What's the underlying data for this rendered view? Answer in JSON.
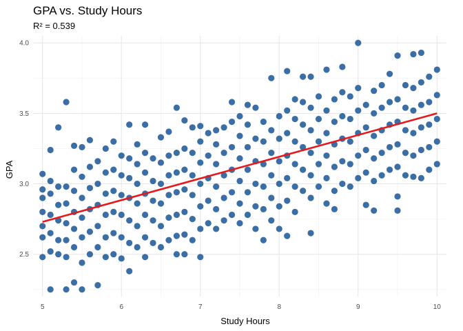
{
  "chart_data": {
    "type": "scatter",
    "title": "GPA vs. Study Hours",
    "subtitle": "R² = 0.539",
    "xlabel": "Study Hours",
    "ylabel": "GPA",
    "xlim": [
      4.88,
      10.12
    ],
    "ylim": [
      2.2,
      4.05
    ],
    "x_ticks": [
      5,
      6,
      7,
      8,
      9,
      10
    ],
    "y_ticks": [
      2.5,
      3.0,
      3.5,
      4.0
    ],
    "x_tick_labels": [
      "5",
      "6",
      "7",
      "8",
      "9",
      "10"
    ],
    "y_tick_labels": [
      "2.5",
      "3.0",
      "3.5",
      "4.0"
    ],
    "grid": true,
    "point_color": "#3A6EA5",
    "line_color": "#E41A1C",
    "trend_line": {
      "x": [
        5,
        10
      ],
      "y": [
        2.73,
        3.5
      ]
    },
    "series": [
      {
        "points": [
          [
            5.0,
            2.48
          ],
          [
            5.0,
            2.62
          ],
          [
            5.0,
            2.7
          ],
          [
            5.0,
            2.8
          ],
          [
            5.0,
            2.9
          ],
          [
            5.0,
            2.96
          ],
          [
            5.0,
            3.07
          ],
          [
            5.1,
            2.25
          ],
          [
            5.1,
            2.52
          ],
          [
            5.1,
            2.65
          ],
          [
            5.1,
            2.78
          ],
          [
            5.1,
            2.93
          ],
          [
            5.1,
            3.02
          ],
          [
            5.1,
            3.24
          ],
          [
            5.2,
            2.5
          ],
          [
            5.2,
            2.6
          ],
          [
            5.2,
            2.74
          ],
          [
            5.2,
            2.85
          ],
          [
            5.2,
            2.98
          ],
          [
            5.2,
            3.4
          ],
          [
            5.3,
            2.25
          ],
          [
            5.3,
            2.48
          ],
          [
            5.3,
            2.6
          ],
          [
            5.3,
            2.72
          ],
          [
            5.3,
            2.86
          ],
          [
            5.3,
            2.98
          ],
          [
            5.3,
            3.58
          ],
          [
            5.4,
            2.3
          ],
          [
            5.4,
            2.55
          ],
          [
            5.4,
            2.68
          ],
          [
            5.4,
            2.8
          ],
          [
            5.4,
            2.95
          ],
          [
            5.4,
            3.1
          ],
          [
            5.4,
            3.27
          ],
          [
            5.5,
            2.25
          ],
          [
            5.5,
            2.44
          ],
          [
            5.5,
            2.62
          ],
          [
            5.5,
            2.76
          ],
          [
            5.5,
            2.9
          ],
          [
            5.5,
            3.05
          ],
          [
            5.5,
            3.26
          ],
          [
            5.6,
            2.5
          ],
          [
            5.6,
            2.66
          ],
          [
            5.6,
            2.82
          ],
          [
            5.6,
            2.97
          ],
          [
            5.6,
            3.12
          ],
          [
            5.6,
            3.31
          ],
          [
            5.7,
            2.28
          ],
          [
            5.7,
            2.55
          ],
          [
            5.7,
            2.7
          ],
          [
            5.7,
            2.85
          ],
          [
            5.7,
            3.0
          ],
          [
            5.7,
            3.16
          ],
          [
            5.8,
            2.48
          ],
          [
            5.8,
            2.62
          ],
          [
            5.8,
            2.78
          ],
          [
            5.8,
            2.93
          ],
          [
            5.8,
            3.08
          ],
          [
            5.8,
            3.25
          ],
          [
            5.9,
            2.5
          ],
          [
            5.9,
            2.65
          ],
          [
            5.9,
            2.8
          ],
          [
            5.9,
            2.95
          ],
          [
            5.9,
            3.1
          ],
          [
            5.9,
            3.3
          ],
          [
            6.0,
            2.47
          ],
          [
            6.0,
            2.62
          ],
          [
            6.0,
            2.78
          ],
          [
            6.0,
            2.92
          ],
          [
            6.0,
            3.06
          ],
          [
            6.0,
            3.2
          ],
          [
            6.1,
            2.38
          ],
          [
            6.1,
            2.58
          ],
          [
            6.1,
            2.74
          ],
          [
            6.1,
            2.9
          ],
          [
            6.1,
            3.04
          ],
          [
            6.1,
            3.18
          ],
          [
            6.1,
            3.42
          ],
          [
            6.2,
            2.55
          ],
          [
            6.2,
            2.7
          ],
          [
            6.2,
            2.86
          ],
          [
            6.2,
            3.0
          ],
          [
            6.2,
            3.14
          ],
          [
            6.2,
            3.28
          ],
          [
            6.3,
            2.48
          ],
          [
            6.3,
            2.62
          ],
          [
            6.3,
            2.78
          ],
          [
            6.3,
            2.93
          ],
          [
            6.3,
            3.08
          ],
          [
            6.3,
            3.22
          ],
          [
            6.3,
            3.42
          ],
          [
            6.4,
            2.58
          ],
          [
            6.4,
            2.74
          ],
          [
            6.4,
            2.88
          ],
          [
            6.4,
            3.02
          ],
          [
            6.4,
            3.18
          ],
          [
            6.5,
            2.55
          ],
          [
            6.5,
            2.7
          ],
          [
            6.5,
            2.86
          ],
          [
            6.5,
            3.0
          ],
          [
            6.5,
            3.15
          ],
          [
            6.5,
            3.33
          ],
          [
            6.6,
            2.6
          ],
          [
            6.6,
            2.76
          ],
          [
            6.6,
            2.92
          ],
          [
            6.6,
            3.06
          ],
          [
            6.6,
            3.2
          ],
          [
            6.6,
            3.37
          ],
          [
            6.7,
            2.5
          ],
          [
            6.7,
            2.63
          ],
          [
            6.7,
            2.78
          ],
          [
            6.7,
            2.94
          ],
          [
            6.7,
            3.08
          ],
          [
            6.7,
            3.22
          ],
          [
            6.7,
            3.54
          ],
          [
            6.8,
            2.5
          ],
          [
            6.8,
            2.64
          ],
          [
            6.8,
            2.8
          ],
          [
            6.8,
            2.96
          ],
          [
            6.8,
            3.1
          ],
          [
            6.8,
            3.25
          ],
          [
            6.8,
            3.45
          ],
          [
            6.9,
            2.6
          ],
          [
            6.9,
            2.75
          ],
          [
            6.9,
            2.92
          ],
          [
            6.9,
            3.06
          ],
          [
            6.9,
            3.22
          ],
          [
            6.9,
            3.4
          ],
          [
            7.0,
            2.48
          ],
          [
            7.0,
            2.68
          ],
          [
            7.0,
            2.84
          ],
          [
            7.0,
            3.0
          ],
          [
            7.0,
            3.15
          ],
          [
            7.0,
            3.3
          ],
          [
            7.0,
            3.41
          ],
          [
            7.1,
            2.72
          ],
          [
            7.1,
            2.88
          ],
          [
            7.1,
            3.04
          ],
          [
            7.1,
            3.2
          ],
          [
            7.1,
            3.36
          ],
          [
            7.2,
            2.68
          ],
          [
            7.2,
            2.82
          ],
          [
            7.2,
            2.98
          ],
          [
            7.2,
            3.14
          ],
          [
            7.2,
            3.28
          ],
          [
            7.2,
            3.38
          ],
          [
            7.3,
            2.74
          ],
          [
            7.3,
            2.9
          ],
          [
            7.3,
            3.06
          ],
          [
            7.3,
            3.22
          ],
          [
            7.3,
            3.4
          ],
          [
            7.4,
            2.78
          ],
          [
            7.4,
            2.94
          ],
          [
            7.4,
            3.1
          ],
          [
            7.4,
            3.26
          ],
          [
            7.4,
            3.44
          ],
          [
            7.4,
            3.58
          ],
          [
            7.5,
            2.72
          ],
          [
            7.5,
            2.86
          ],
          [
            7.5,
            3.02
          ],
          [
            7.5,
            3.18
          ],
          [
            7.5,
            3.34
          ],
          [
            7.5,
            3.48
          ],
          [
            7.6,
            2.78
          ],
          [
            7.6,
            2.94
          ],
          [
            7.6,
            3.1
          ],
          [
            7.6,
            3.26
          ],
          [
            7.6,
            3.42
          ],
          [
            7.6,
            3.56
          ],
          [
            7.7,
            2.68
          ],
          [
            7.7,
            2.84
          ],
          [
            7.7,
            3.0
          ],
          [
            7.7,
            3.16
          ],
          [
            7.7,
            3.32
          ],
          [
            7.7,
            3.54
          ],
          [
            7.8,
            2.6
          ],
          [
            7.8,
            2.82
          ],
          [
            7.8,
            2.98
          ],
          [
            7.8,
            3.14
          ],
          [
            7.8,
            3.3
          ],
          [
            7.8,
            3.44
          ],
          [
            7.9,
            2.74
          ],
          [
            7.9,
            2.9
          ],
          [
            7.9,
            3.06
          ],
          [
            7.9,
            3.22
          ],
          [
            7.9,
            3.38
          ],
          [
            7.9,
            3.75
          ],
          [
            8.0,
            2.68
          ],
          [
            8.0,
            2.84
          ],
          [
            8.0,
            3.0
          ],
          [
            8.0,
            3.16
          ],
          [
            8.0,
            3.32
          ],
          [
            8.0,
            3.48
          ],
          [
            8.1,
            2.63
          ],
          [
            8.1,
            2.88
          ],
          [
            8.1,
            3.04
          ],
          [
            8.1,
            3.2
          ],
          [
            8.1,
            3.36
          ],
          [
            8.1,
            3.52
          ],
          [
            8.1,
            3.8
          ],
          [
            8.2,
            2.8
          ],
          [
            8.2,
            2.98
          ],
          [
            8.2,
            3.14
          ],
          [
            8.2,
            3.3
          ],
          [
            8.2,
            3.46
          ],
          [
            8.2,
            3.6
          ],
          [
            8.3,
            2.95
          ],
          [
            8.3,
            3.1
          ],
          [
            8.3,
            3.26
          ],
          [
            8.3,
            3.42
          ],
          [
            8.3,
            3.58
          ],
          [
            8.3,
            3.76
          ],
          [
            8.4,
            2.65
          ],
          [
            8.4,
            2.9
          ],
          [
            8.4,
            3.06
          ],
          [
            8.4,
            3.22
          ],
          [
            8.4,
            3.38
          ],
          [
            8.4,
            3.54
          ],
          [
            8.4,
            3.76
          ],
          [
            8.5,
            2.98
          ],
          [
            8.5,
            3.14
          ],
          [
            8.5,
            3.3
          ],
          [
            8.5,
            3.46
          ],
          [
            8.5,
            3.62
          ],
          [
            8.6,
            2.86
          ],
          [
            8.6,
            3.04
          ],
          [
            8.6,
            3.2
          ],
          [
            8.6,
            3.36
          ],
          [
            8.6,
            3.52
          ],
          [
            8.6,
            3.81
          ],
          [
            8.7,
            2.82
          ],
          [
            8.7,
            2.95
          ],
          [
            8.7,
            3.12
          ],
          [
            8.7,
            3.28
          ],
          [
            8.7,
            3.44
          ],
          [
            8.7,
            3.6
          ],
          [
            8.8,
            3.0
          ],
          [
            8.8,
            3.16
          ],
          [
            8.8,
            3.32
          ],
          [
            8.8,
            3.48
          ],
          [
            8.8,
            3.65
          ],
          [
            8.8,
            3.83
          ],
          [
            8.9,
            2.98
          ],
          [
            8.9,
            3.14
          ],
          [
            8.9,
            3.3
          ],
          [
            8.9,
            3.46
          ],
          [
            8.9,
            3.62
          ],
          [
            9.0,
            3.04
          ],
          [
            9.0,
            3.2
          ],
          [
            9.0,
            3.36
          ],
          [
            9.0,
            3.52
          ],
          [
            9.0,
            3.68
          ],
          [
            9.0,
            4.0
          ],
          [
            9.1,
            2.85
          ],
          [
            9.1,
            3.08
          ],
          [
            9.1,
            3.24
          ],
          [
            9.1,
            3.4
          ],
          [
            9.1,
            3.56
          ],
          [
            9.2,
            2.81
          ],
          [
            9.2,
            3.02
          ],
          [
            9.2,
            3.18
          ],
          [
            9.2,
            3.34
          ],
          [
            9.2,
            3.5
          ],
          [
            9.2,
            3.66
          ],
          [
            9.3,
            3.06
          ],
          [
            9.3,
            3.22
          ],
          [
            9.3,
            3.38
          ],
          [
            9.3,
            3.54
          ],
          [
            9.3,
            3.7
          ],
          [
            9.4,
            3.1
          ],
          [
            9.4,
            3.26
          ],
          [
            9.4,
            3.42
          ],
          [
            9.4,
            3.58
          ],
          [
            9.4,
            3.78
          ],
          [
            9.5,
            2.81
          ],
          [
            9.5,
            2.91
          ],
          [
            9.5,
            3.12
          ],
          [
            9.5,
            3.28
          ],
          [
            9.5,
            3.44
          ],
          [
            9.5,
            3.6
          ],
          [
            9.5,
            3.91
          ],
          [
            9.6,
            3.06
          ],
          [
            9.6,
            3.22
          ],
          [
            9.6,
            3.38
          ],
          [
            9.6,
            3.54
          ],
          [
            9.6,
            3.7
          ],
          [
            9.7,
            3.05
          ],
          [
            9.7,
            3.2
          ],
          [
            9.7,
            3.36
          ],
          [
            9.7,
            3.52
          ],
          [
            9.7,
            3.68
          ],
          [
            9.7,
            3.92
          ],
          [
            9.8,
            3.04
          ],
          [
            9.8,
            3.24
          ],
          [
            9.8,
            3.4
          ],
          [
            9.8,
            3.56
          ],
          [
            9.8,
            3.72
          ],
          [
            9.8,
            3.93
          ],
          [
            9.9,
            3.1
          ],
          [
            9.9,
            3.26
          ],
          [
            9.9,
            3.42
          ],
          [
            9.9,
            3.58
          ],
          [
            9.9,
            3.76
          ],
          [
            10.0,
            3.14
          ],
          [
            10.0,
            3.3
          ],
          [
            10.0,
            3.46
          ],
          [
            10.0,
            3.63
          ],
          [
            10.0,
            3.81
          ]
        ]
      }
    ]
  }
}
